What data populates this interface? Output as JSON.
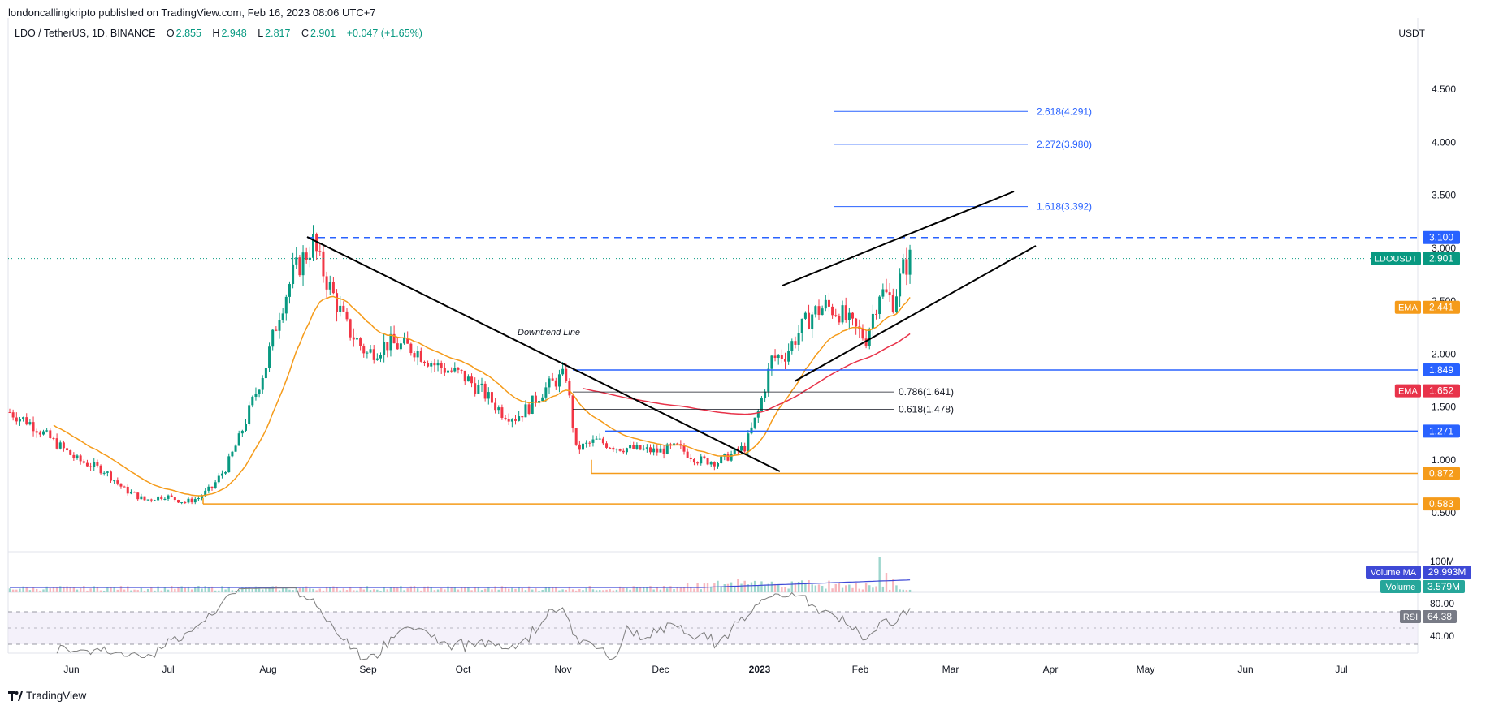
{
  "header": {
    "published_by": "londoncallingkripto published on TradingView.com, Feb 16, 2023 08:06 UTC+7",
    "pair": "LDO / TetherUS, 1D, BINANCE",
    "ohlc": [
      {
        "label": "O",
        "value": "2.855"
      },
      {
        "label": "H",
        "value": "2.948"
      },
      {
        "label": "L",
        "value": "2.817"
      },
      {
        "label": "C",
        "value": "2.901"
      }
    ],
    "change": "+0.047 (+1.65%)",
    "currency": "USDT"
  },
  "brand": {
    "name": "TradingView",
    "logo_icon": "tradingview-logo-icon"
  },
  "chart_data": {
    "type": "candlestick",
    "x_labels": [
      "Jun",
      "Jul",
      "Aug",
      "Sep",
      "Oct",
      "Nov",
      "Dec",
      "2023",
      "Feb",
      "Mar",
      "Apr",
      "May",
      "Jun",
      "Jul"
    ],
    "y_ticks": [
      "4.500",
      "4.000",
      "3.500",
      "3.000",
      "2.500",
      "2.000",
      "1.500",
      "1.000",
      "0.500"
    ],
    "y_tick_values": [
      4.5,
      4.0,
      3.5,
      3.0,
      2.5,
      2.0,
      1.5,
      1.0,
      0.5
    ],
    "price_path": [
      [
        0,
        1.45
      ],
      [
        6,
        1.35
      ],
      [
        12,
        1.2
      ],
      [
        20,
        1.0
      ],
      [
        28,
        0.9
      ],
      [
        34,
        0.72
      ],
      [
        40,
        0.62
      ],
      [
        46,
        0.66
      ],
      [
        52,
        0.6
      ],
      [
        56,
        0.64
      ],
      [
        60,
        0.74
      ],
      [
        64,
        0.92
      ],
      [
        68,
        1.2
      ],
      [
        72,
        1.55
      ],
      [
        76,
        1.9
      ],
      [
        80,
        2.4
      ],
      [
        84,
        2.75
      ],
      [
        88,
        2.95
      ],
      [
        90,
        3.05
      ],
      [
        92,
        2.85
      ],
      [
        96,
        2.55
      ],
      [
        100,
        2.25
      ],
      [
        106,
        2.0
      ],
      [
        112,
        2.1
      ],
      [
        120,
        2.05
      ],
      [
        126,
        1.9
      ],
      [
        134,
        1.8
      ],
      [
        140,
        1.65
      ],
      [
        146,
        1.45
      ],
      [
        150,
        1.4
      ],
      [
        154,
        1.5
      ],
      [
        158,
        1.65
      ],
      [
        162,
        1.75
      ],
      [
        165,
        1.8
      ],
      [
        168,
        1.1
      ],
      [
        174,
        1.18
      ],
      [
        180,
        1.12
      ],
      [
        186,
        1.1
      ],
      [
        192,
        1.08
      ],
      [
        198,
        1.12
      ],
      [
        204,
        1.0
      ],
      [
        210,
        0.98
      ],
      [
        214,
        1.05
      ],
      [
        218,
        1.12
      ],
      [
        222,
        1.45
      ],
      [
        226,
        1.95
      ],
      [
        230,
        2.0
      ],
      [
        234,
        2.2
      ],
      [
        238,
        2.38
      ],
      [
        242,
        2.45
      ],
      [
        246,
        2.4
      ],
      [
        250,
        2.25
      ],
      [
        254,
        2.15
      ],
      [
        258,
        2.6
      ],
      [
        262,
        2.5
      ],
      [
        265,
        2.8
      ],
      [
        267,
        2.9
      ]
    ],
    "candle_count": 268,
    "indicators": {
      "ema_short": {
        "label": "EMA",
        "value": "2.441",
        "color": "#f59b1a"
      },
      "ema_long": {
        "label": "EMA",
        "value": "1.652",
        "color": "#e8334a"
      }
    },
    "price_labels": [
      {
        "text": "3.100",
        "value": 3.1,
        "color": "#2962ff"
      },
      {
        "text": "2.901",
        "value": 2.901,
        "color": "#089981",
        "tag": "LDOUSDT"
      },
      {
        "text": "2.441",
        "value": 2.441,
        "color": "#f59b1a",
        "tag": "EMA"
      },
      {
        "text": "1.849",
        "value": 1.849,
        "color": "#2962ff"
      },
      {
        "text": "1.652",
        "value": 1.652,
        "color": "#e8334a",
        "tag": "EMA"
      },
      {
        "text": "1.271",
        "value": 1.271,
        "color": "#2962ff"
      },
      {
        "text": "0.872",
        "value": 0.872,
        "color": "#f59b1a"
      },
      {
        "text": "0.583",
        "value": 0.583,
        "color": "#f59b1a"
      }
    ],
    "fib_levels": [
      {
        "text": "2.618(4.291)",
        "value": 4.291
      },
      {
        "text": "2.272(3.980)",
        "value": 3.98
      },
      {
        "text": "1.618(3.392)",
        "value": 3.392
      }
    ],
    "retracements": [
      {
        "text": "0.786(1.641)",
        "value": 1.641
      },
      {
        "text": "0.618(1.478)",
        "value": 1.478
      }
    ],
    "annotations": [
      {
        "text": "Downtrend Line"
      }
    ],
    "volume": {
      "axis_label": "100M",
      "ma_label": "Volume MA",
      "ma_value": "29.993M",
      "vol_label": "Volume",
      "vol_value": "3.579M"
    },
    "rsi": {
      "label": "RSI",
      "value": "64.38",
      "ticks": [
        "80.00",
        "40.00"
      ],
      "tick_values": [
        80,
        40
      ],
      "band": [
        30,
        70
      ]
    },
    "colors": {
      "up": "#089981",
      "down": "#f23645",
      "grid": "#e0e3eb",
      "horizontal_blue": "#2962ff",
      "horizontal_orange": "#f59b1a"
    }
  }
}
